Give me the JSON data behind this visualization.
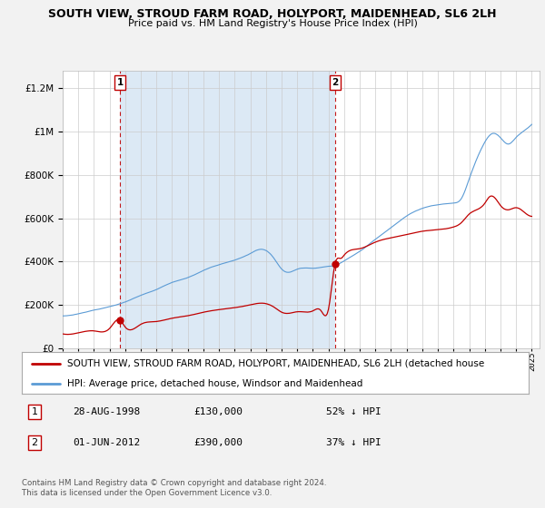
{
  "title": "SOUTH VIEW, STROUD FARM ROAD, HOLYPORT, MAIDENHEAD, SL6 2LH",
  "subtitle": "Price paid vs. HM Land Registry's House Price Index (HPI)",
  "hpi_label": "HPI: Average price, detached house, Windsor and Maidenhead",
  "property_label": "SOUTH VIEW, STROUD FARM ROAD, HOLYPORT, MAIDENHEAD, SL6 2LH (detached house",
  "hpi_color": "#5b9bd5",
  "property_color": "#c00000",
  "sale1_date": "28-AUG-1998",
  "sale1_price": 130000,
  "sale1_label": "52% ↓ HPI",
  "sale2_date": "01-JUN-2012",
  "sale2_price": 390000,
  "sale2_label": "37% ↓ HPI",
  "sale1_x": 1998.66,
  "sale2_x": 2012.42,
  "ylim": [
    0,
    1280000
  ],
  "xlim_left": 1995.0,
  "xlim_right": 2025.5,
  "footer": "Contains HM Land Registry data © Crown copyright and database right 2024.\nThis data is licensed under the Open Government Licence v3.0.",
  "background_color": "#f2f2f2",
  "plot_bg_color": "#ffffff",
  "shade_color": "#dce9f5",
  "grid_color": "#cccccc"
}
